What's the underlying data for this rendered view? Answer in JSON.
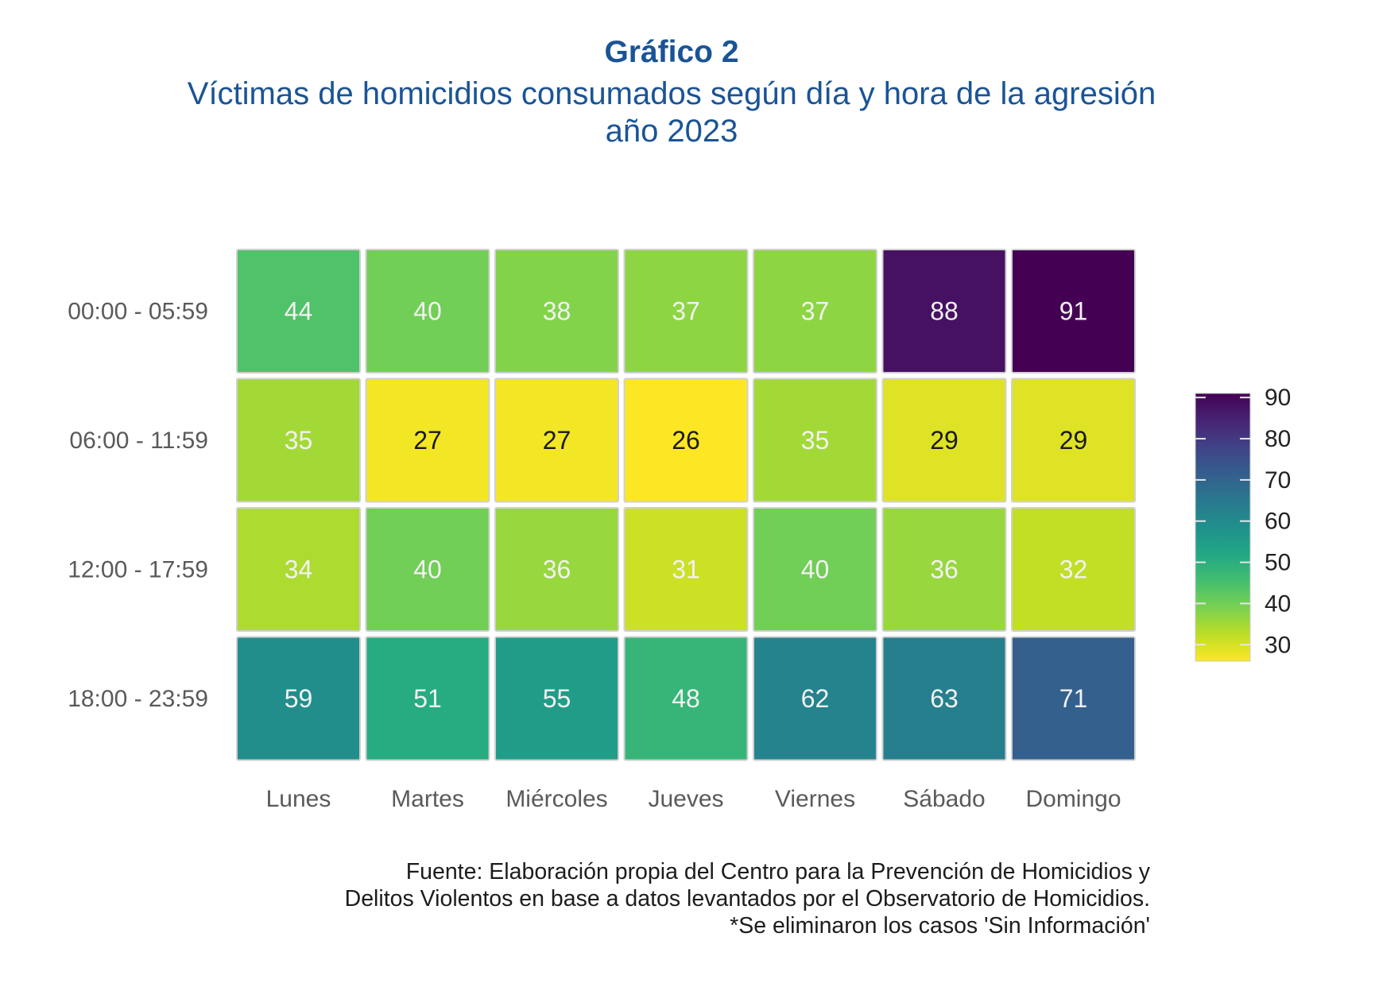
{
  "header": {
    "title": "Gráfico 2",
    "subtitle": "Víctimas de homicidios consumados según día y hora de la agresión",
    "subtitle2": "año 2023"
  },
  "chart_data": {
    "type": "heatmap",
    "title": "Gráfico 2",
    "subtitle": "Víctimas de homicidios consumados según día y hora de la agresión año 2023",
    "xlabel": "",
    "ylabel": "",
    "x": [
      "Lunes",
      "Martes",
      "Miércoles",
      "Jueves",
      "Viernes",
      "Sábado",
      "Domingo"
    ],
    "y": [
      "00:00 - 05:59",
      "06:00 - 11:59",
      "12:00 - 17:59",
      "18:00 - 23:59"
    ],
    "values": [
      [
        44,
        40,
        38,
        37,
        37,
        88,
        91
      ],
      [
        35,
        27,
        27,
        26,
        35,
        29,
        29
      ],
      [
        34,
        40,
        36,
        31,
        40,
        36,
        32
      ],
      [
        59,
        51,
        55,
        48,
        62,
        63,
        71
      ]
    ],
    "colorscale": "viridis (reversed: low = yellow, high = dark purple)",
    "color_range": [
      26,
      91
    ],
    "legend": {
      "position": "right",
      "ticks": [
        30,
        40,
        50,
        60,
        70,
        80,
        90
      ],
      "tick_labels": [
        "30",
        "40",
        "50",
        "60",
        "70",
        "80",
        "90"
      ]
    },
    "dark_text_values": [
      26,
      27,
      29
    ],
    "grid": false
  },
  "footer": {
    "line1": "Fuente: Elaboración propia del Centro para la Prevención de Homicidios y",
    "line2": "Delitos Violentos en base a datos levantados por el Observatorio de Homicidios.",
    "line3": "*Se eliminaron los casos 'Sin Información'"
  },
  "colors": {
    "title": "#1a5496",
    "axis_text": "#5a5a5a",
    "cell_border": "#d0d0d0",
    "light_label": "#f2f2f2",
    "dark_label": "#1a1a1a"
  }
}
